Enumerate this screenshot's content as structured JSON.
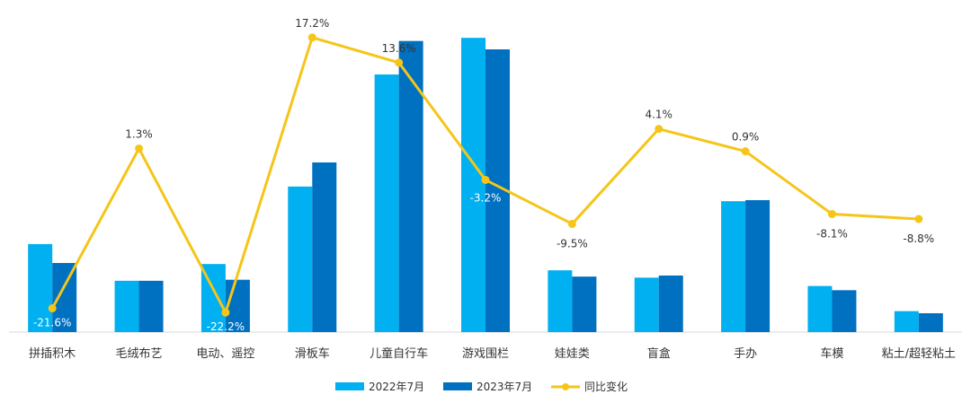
{
  "chart_data": {
    "type": "bar+line",
    "categories": [
      "拼插积木",
      "毛绒布艺",
      "电动、遥控",
      "滑板车",
      "儿童自行车",
      "游戏围栏",
      "娃娃类",
      "盲盒",
      "手办",
      "车模",
      "粘土/超轻粘土"
    ],
    "series": [
      {
        "name": "2022年7月",
        "type": "bar",
        "color": "#00B0F0",
        "values": [
          84,
          49,
          65,
          139,
          246,
          281,
          59,
          52,
          125,
          44,
          20
        ]
      },
      {
        "name": "2023年7月",
        "type": "bar",
        "color": "#0070C0",
        "values": [
          66,
          49,
          50,
          162,
          278,
          270,
          53,
          54,
          126,
          40,
          18
        ]
      },
      {
        "name": "同比变化",
        "type": "line",
        "color": "#F5C518",
        "axis": "secondary",
        "values": [
          -21.6,
          1.3,
          -22.2,
          17.2,
          13.6,
          -3.2,
          -9.5,
          4.1,
          0.9,
          -8.1,
          -8.8
        ],
        "labels": [
          "-21.6%",
          "1.3%",
          "-22.2%",
          "17.2%",
          "13.6%",
          "-3.2%",
          "-9.5%",
          "4.1%",
          "0.9%",
          "-8.1%",
          "-8.8%"
        ]
      }
    ],
    "bar_axis_range": [
      0,
      300
    ],
    "line_axis_range": [
      -25,
      20
    ],
    "legend": {
      "position": "bottom-center",
      "items": [
        "2022年7月",
        "2023年7月",
        "同比变化"
      ]
    },
    "title": "",
    "xlabel": "",
    "ylabel": "",
    "grid": false
  }
}
